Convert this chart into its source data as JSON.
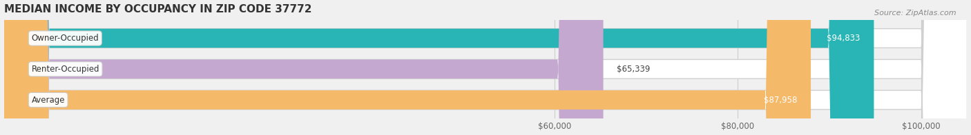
{
  "title": "MEDIAN INCOME BY OCCUPANCY IN ZIP CODE 37772",
  "source": "Source: ZipAtlas.com",
  "categories": [
    "Owner-Occupied",
    "Renter-Occupied",
    "Average"
  ],
  "values": [
    94833,
    65339,
    87958
  ],
  "labels": [
    "$94,833",
    "$65,339",
    "$87,958"
  ],
  "bar_colors": [
    "#29b5b5",
    "#c4a8d0",
    "#f5b96a"
  ],
  "xmin": 0,
  "xmax": 105000,
  "xticks": [
    60000,
    80000,
    100000
  ],
  "xticklabels": [
    "$60,000",
    "$80,000",
    "$100,000"
  ],
  "background_color": "#f0f0f0",
  "bar_background_color": "#e8e8e8",
  "title_fontsize": 11,
  "label_fontsize": 8.5,
  "source_fontsize": 8,
  "bar_height": 0.62,
  "rounding_size": 5000
}
